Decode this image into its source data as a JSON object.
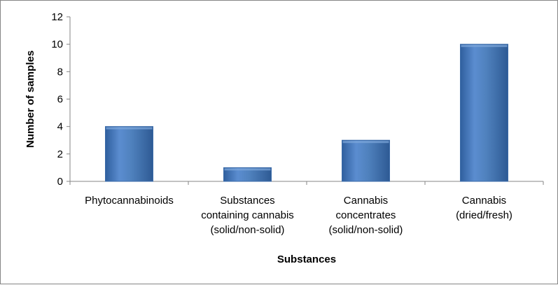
{
  "chart_data": {
    "type": "bar",
    "categories": [
      [
        "Phytocannabinoids"
      ],
      [
        "Substances",
        "containing cannabis",
        "(solid/non-solid)"
      ],
      [
        "Cannabis",
        "concentrates",
        "(solid/non-solid)"
      ],
      [
        "Cannabis",
        "(dried/fresh)"
      ]
    ],
    "values": [
      4,
      1,
      3,
      10
    ],
    "xlabel": "Substances",
    "ylabel": "Number of samples",
    "ylim": [
      0,
      12
    ],
    "yticks": [
      0,
      2,
      4,
      6,
      8,
      10,
      12
    ],
    "grid": false,
    "legend": "none",
    "bar_color": "#4F81BD",
    "bar_edge_color": "#3A6AA8"
  }
}
